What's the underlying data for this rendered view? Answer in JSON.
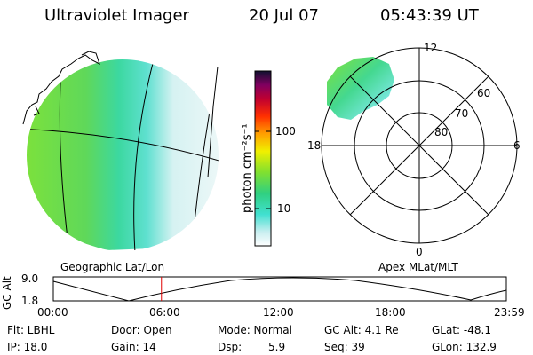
{
  "header": {
    "title": "Ultraviolet Imager",
    "date": "20 Jul 07",
    "time": "05:43:39 UT"
  },
  "colorbar": {
    "unit_label": "photon cm⁻²s⁻¹",
    "ticks": [
      "100",
      "10"
    ]
  },
  "geo_panel": {
    "label": "Geographic Lat/Lon"
  },
  "polar_panel": {
    "label": "Apex MLat/MLT",
    "mlt_labels": {
      "top": "12",
      "bottom": "0",
      "left": "18",
      "right": "6"
    },
    "mlat_labels": [
      "60",
      "70",
      "80"
    ]
  },
  "altitude_plot": {
    "ylabel": "GC Alt",
    "ymax_label": "9.0",
    "ymin_label": "1.8",
    "xticks": [
      "00:00",
      "06:00",
      "12:00",
      "18:00",
      "23:59"
    ],
    "marker_hour": 5.73
  },
  "info": {
    "filter": "Flt: LBHL",
    "door": "Door: Open",
    "mode": "Mode: Normal",
    "gc_alt": "GC Alt: 4.1 Re",
    "glat": "GLat: -48.1",
    "ip": "IP: 18.0",
    "gain": "Gain: 14",
    "dsp_label": "Dsp:",
    "dsp_value": "5.9",
    "seq": "Seq: 39",
    "glon": "GLon: 132.9"
  }
}
